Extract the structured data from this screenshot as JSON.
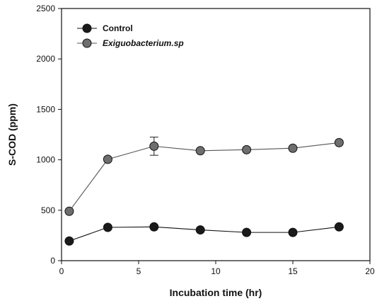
{
  "chart_data": {
    "type": "line",
    "title": "",
    "xlabel": "Incubation time (hr)",
    "ylabel": "S-COD (ppm)",
    "xlim": [
      0,
      20
    ],
    "ylim": [
      0,
      2500
    ],
    "xticks": [
      0,
      5,
      10,
      15,
      20
    ],
    "yticks": [
      0,
      500,
      1000,
      1500,
      2000,
      2500
    ],
    "grid": false,
    "legend_position": "top-left",
    "series": [
      {
        "name": "Control",
        "italic": false,
        "color": "#111111",
        "marker_color": "#1a1a1a",
        "x": [
          0.5,
          3,
          6,
          9,
          12,
          15,
          18
        ],
        "y": [
          195,
          330,
          335,
          305,
          280,
          280,
          335
        ]
      },
      {
        "name": "Exiguobacterium.sp",
        "italic": true,
        "color": "#555555",
        "marker_color": "#6e6e6e",
        "x": [
          0.5,
          3,
          6,
          9,
          12,
          15,
          18
        ],
        "y": [
          490,
          1005,
          1135,
          1090,
          1100,
          1115,
          1170
        ],
        "error": [
          0,
          0,
          90,
          0,
          0,
          0,
          0
        ]
      }
    ]
  }
}
